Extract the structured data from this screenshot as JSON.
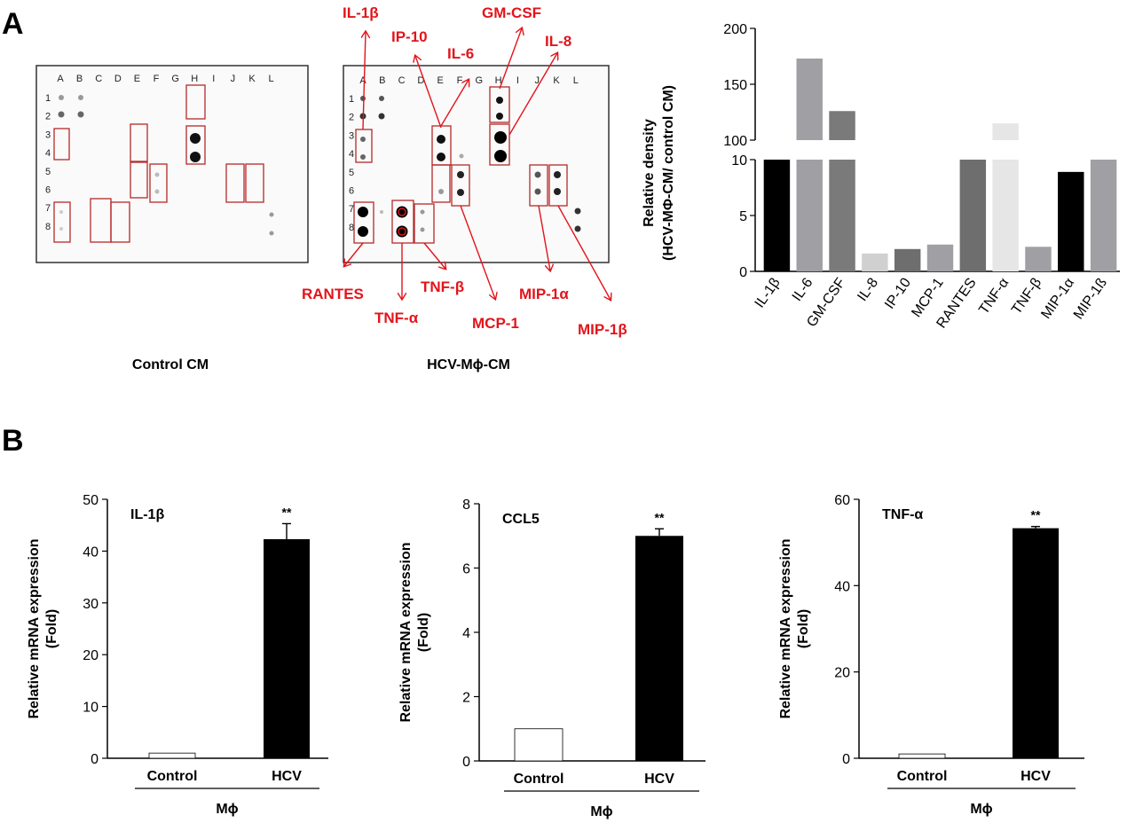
{
  "panel_a": {
    "letter": "A",
    "arrays": {
      "col_letters": [
        "A",
        "B",
        "C",
        "D",
        "E",
        "F",
        "G",
        "H",
        "I",
        "J",
        "K",
        "L"
      ],
      "row_numbers": [
        "1",
        "2",
        "3",
        "4",
        "5",
        "6",
        "7",
        "8"
      ],
      "control_caption": "Control CM",
      "hcv_caption": "HCV-Mϕ-CM"
    },
    "labels": {
      "il1b": "IL-1β",
      "ip10": "IP-10",
      "il6": "IL-6",
      "gmcsf": "GM-CSF",
      "il8": "IL-8",
      "rantes": "RANTES",
      "tnfa": "TNF-α",
      "tnfb": "TNF-β",
      "mcp1": "MCP-1",
      "mip1a": "MIP-1α",
      "mip1b": "MIP-1β"
    }
  },
  "panel_b": {
    "letter": "B"
  },
  "colors": {
    "annotation_red": "#e3141b",
    "black_bar": "#000000",
    "gray_bar": "#a0a0a4",
    "dark_gray_bar": "#6e6e6e",
    "light_gray_bar": "#d0d0d0"
  },
  "chart_data": [
    {
      "type": "bar",
      "categories": [
        "IL-1β",
        "IL-6",
        "GM-CSF",
        "IL-8",
        "IP-10",
        "MCP-1",
        "RANTES",
        "TNF-α",
        "TNF-β",
        "MIP-1α",
        "MIP-1ß"
      ],
      "values": [
        10,
        173,
        126,
        1.6,
        2.0,
        2.4,
        10,
        115,
        2.2,
        8.9,
        10
      ],
      "colors": [
        "#000000",
        "#a0a0a4",
        "#7a7a7a",
        "#d0d0d0",
        "#6e6e6e",
        "#a0a0a4",
        "#6e6e6e",
        "#e6e6e6",
        "#a0a0a4",
        "#000000",
        "#a0a0a4"
      ],
      "title": "",
      "xlabel": "",
      "ylabel": "Relative density (HCV-MΦ-CM/ control CM)",
      "ylabel_line1": "Relative density",
      "ylabel_line2": "(HCV-MΦ-CM/ control CM)",
      "y_break": true,
      "lower_segment": {
        "ylim": [
          0,
          10
        ],
        "ticks": [
          "0",
          "5",
          "10"
        ]
      },
      "upper_segment": {
        "ylim": [
          100,
          200
        ],
        "ticks": [
          "100",
          "150",
          "200"
        ]
      }
    },
    {
      "type": "bar",
      "title": "IL-1β",
      "categories": [
        "Control",
        "HCV"
      ],
      "values": [
        1,
        42.3
      ],
      "errors": [
        0,
        3.0
      ],
      "significance": [
        "",
        "**"
      ],
      "group_label": "Mϕ",
      "ylabel_line1": "Relative mRNA expression",
      "ylabel_line2": "(Fold)",
      "ylim": [
        0,
        50
      ],
      "ticks": [
        "0",
        "10",
        "20",
        "30",
        "40",
        "50"
      ]
    },
    {
      "type": "bar",
      "title": "CCL5",
      "categories": [
        "Control",
        "HCV"
      ],
      "values": [
        1,
        7.0
      ],
      "errors": [
        0,
        0.22
      ],
      "significance": [
        "",
        "**"
      ],
      "group_label": "Mϕ",
      "ylabel_line1": "Relative mRNA expression",
      "ylabel_line2": "(Fold)",
      "ylim": [
        0,
        8
      ],
      "ticks": [
        "0",
        "2",
        "4",
        "6",
        "8"
      ]
    },
    {
      "type": "bar",
      "title": "TNF-α",
      "categories": [
        "Control",
        "HCV"
      ],
      "values": [
        1,
        53.3
      ],
      "errors": [
        0,
        0.4
      ],
      "significance": [
        "",
        "**"
      ],
      "group_label": "Mϕ",
      "ylabel_line1": "Relative mRNA expression",
      "ylabel_line2": "(Fold)",
      "ylim": [
        0,
        60
      ],
      "ticks": [
        "0",
        "20",
        "40",
        "60"
      ]
    }
  ]
}
